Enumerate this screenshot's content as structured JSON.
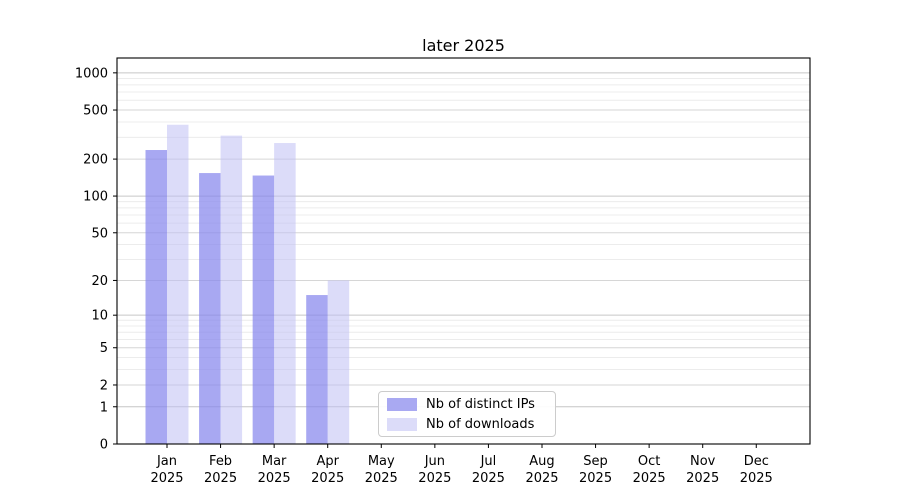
{
  "title": "later 2025",
  "chart_data": {
    "type": "bar",
    "title": "later 2025",
    "year": "2025",
    "categories": [
      "Jan 2025",
      "Feb 2025",
      "Mar 2025",
      "Apr 2025",
      "May 2025",
      "Jun 2025",
      "Jul 2025",
      "Aug 2025",
      "Sep 2025",
      "Oct 2025",
      "Nov 2025",
      "Dec 2025"
    ],
    "month_labels": [
      "Jan",
      "Feb",
      "Mar",
      "Apr",
      "May",
      "Jun",
      "Jul",
      "Aug",
      "Sep",
      "Oct",
      "Nov",
      "Dec"
    ],
    "series": [
      {
        "name": "Nb of distinct IPs",
        "color": "#a9a9f2",
        "fill_rgba": "rgba(134,134,237,0.72)",
        "values": [
          237,
          154,
          147,
          15,
          0,
          0,
          0,
          0,
          0,
          0,
          0,
          0
        ]
      },
      {
        "name": "Nb of downloads",
        "color": "#dcdcf9",
        "fill_rgba": "rgba(191,191,244,0.55)",
        "values": [
          380,
          310,
          270,
          20,
          0,
          0,
          0,
          0,
          0,
          0,
          0,
          0
        ]
      }
    ],
    "yscale": "log10(1+v)",
    "yticks": [
      0,
      1,
      2,
      5,
      10,
      20,
      50,
      100,
      200,
      500,
      1000
    ],
    "ylim": [
      0,
      1000
    ],
    "grid": "on",
    "legend_position": "lower-center"
  },
  "colors": {
    "grid_minor": "#ececec",
    "grid_major": "#d6d6d6",
    "grid_decade": "#c6c6c6",
    "spine": "#000000",
    "tick_text": "#000000",
    "background": "#ffffff"
  }
}
